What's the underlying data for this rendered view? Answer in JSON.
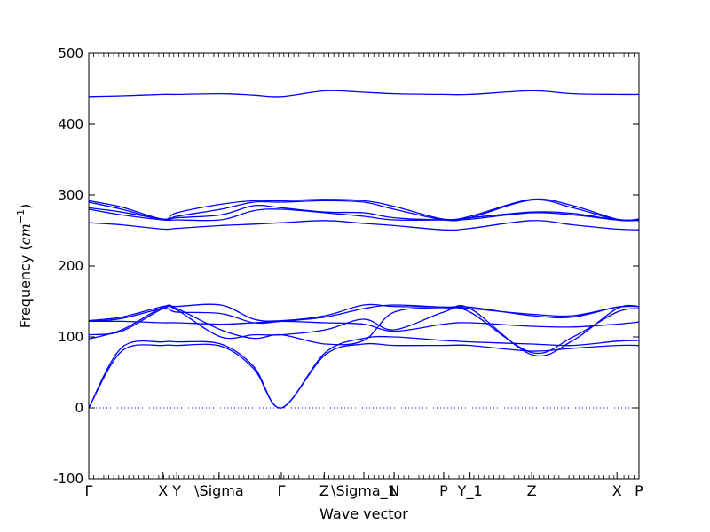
{
  "chart_data": {
    "type": "line",
    "xlabel": "Wave vector",
    "ylabel_main": "Frequency (",
    "ylabel_unit": "cm",
    "ylabel_exp": "−1",
    "ylabel_close": ")",
    "ylim": [
      -100,
      500
    ],
    "xlim": [
      0,
      1
    ],
    "yticks": [
      -100,
      0,
      100,
      200,
      300,
      400,
      500
    ],
    "xticks": [
      {
        "label": "Γ",
        "x": 0.0
      },
      {
        "label": "X",
        "x": 0.135
      },
      {
        "label": "Y",
        "x": 0.16
      },
      {
        "label": "\\Sigma",
        "x": 0.237
      },
      {
        "label": "Γ",
        "x": 0.35
      },
      {
        "label": "Z",
        "x": 0.428
      },
      {
        "label": "\\Sigma_1",
        "x": 0.5
      },
      {
        "label": "N",
        "x": 0.555
      },
      {
        "label": "P",
        "x": 0.645
      },
      {
        "label": "Y_1",
        "x": 0.693
      },
      {
        "label": "Z",
        "x": 0.805
      },
      {
        "label": "X",
        "x": 0.96
      },
      {
        "label": "P",
        "x": 1.0
      }
    ],
    "reference_line": {
      "y": 0,
      "style": "dotted"
    },
    "line_color": "#0000ff",
    "series": [
      {
        "x": [
          0,
          0.06,
          0.135,
          0.16,
          0.24,
          0.3,
          0.35,
          0.43,
          0.5,
          0.555,
          0.645,
          0.693,
          0.805,
          0.88,
          0.96,
          1
        ],
        "y": [
          0,
          80,
          88,
          88,
          87,
          55,
          0,
          75,
          90,
          88,
          88,
          88,
          80,
          84,
          88,
          88
        ]
      },
      {
        "x": [
          0,
          0.06,
          0.135,
          0.16,
          0.24,
          0.3,
          0.35,
          0.43,
          0.5,
          0.555,
          0.645,
          0.693,
          0.805,
          0.88,
          0.96,
          1
        ],
        "y": [
          0,
          85,
          93,
          93,
          90,
          58,
          0,
          78,
          98,
          100,
          95,
          93,
          90,
          88,
          94,
          95
        ]
      },
      {
        "x": [
          0,
          0.06,
          0.135,
          0.16,
          0.24,
          0.3,
          0.35,
          0.43,
          0.5,
          0.555,
          0.645,
          0.693,
          0.805,
          0.88,
          0.96,
          1
        ],
        "y": [
          97,
          110,
          142,
          140,
          110,
          98,
          103,
          90,
          95,
          135,
          140,
          135,
          78,
          100,
          135,
          140
        ]
      },
      {
        "x": [
          0,
          0.06,
          0.135,
          0.16,
          0.24,
          0.3,
          0.35,
          0.43,
          0.5,
          0.555,
          0.645,
          0.693,
          0.805,
          0.88,
          0.96,
          1
        ],
        "y": [
          103,
          108,
          140,
          138,
          100,
          103,
          103,
          110,
          125,
          110,
          135,
          140,
          75,
          95,
          140,
          143
        ]
      },
      {
        "x": [
          0,
          0.06,
          0.135,
          0.16,
          0.24,
          0.3,
          0.35,
          0.43,
          0.5,
          0.555,
          0.645,
          0.693,
          0.805,
          0.88,
          0.96,
          1
        ],
        "y": [
          122,
          126,
          140,
          135,
          133,
          120,
          122,
          128,
          140,
          145,
          142,
          142,
          130,
          128,
          142,
          143
        ]
      },
      {
        "x": [
          0,
          0.06,
          0.135,
          0.16,
          0.24,
          0.3,
          0.35,
          0.43,
          0.5,
          0.555,
          0.645,
          0.693,
          0.805,
          0.88,
          0.96,
          1
        ],
        "y": [
          123,
          128,
          143,
          143,
          145,
          125,
          123,
          130,
          145,
          143,
          142,
          140,
          132,
          130,
          142,
          143
        ]
      },
      {
        "x": [
          0,
          0.06,
          0.135,
          0.16,
          0.24,
          0.3,
          0.35,
          0.43,
          0.5,
          0.555,
          0.645,
          0.693,
          0.805,
          0.88,
          0.96,
          1
        ],
        "y": [
          122,
          122,
          120,
          120,
          118,
          120,
          122,
          120,
          118,
          108,
          118,
          120,
          115,
          114,
          118,
          121
        ]
      },
      {
        "x": [
          0,
          0.06,
          0.135,
          0.16,
          0.24,
          0.3,
          0.35,
          0.43,
          0.5,
          0.555,
          0.645,
          0.693,
          0.805,
          0.88,
          0.96,
          1
        ],
        "y": [
          261,
          258,
          252,
          253,
          257,
          259,
          261,
          264,
          260,
          257,
          251,
          253,
          264,
          258,
          252,
          251
        ]
      },
      {
        "x": [
          0,
          0.06,
          0.135,
          0.16,
          0.24,
          0.3,
          0.35,
          0.43,
          0.5,
          0.555,
          0.645,
          0.693,
          0.805,
          0.88,
          0.96,
          1
        ],
        "y": [
          280,
          272,
          265,
          265,
          265,
          278,
          280,
          275,
          270,
          265,
          265,
          266,
          275,
          272,
          265,
          264
        ]
      },
      {
        "x": [
          0,
          0.06,
          0.135,
          0.16,
          0.24,
          0.3,
          0.35,
          0.43,
          0.5,
          0.555,
          0.645,
          0.693,
          0.805,
          0.88,
          0.96,
          1
        ],
        "y": [
          282,
          276,
          266,
          268,
          272,
          285,
          282,
          276,
          275,
          268,
          265,
          268,
          276,
          274,
          265,
          265
        ]
      },
      {
        "x": [
          0,
          0.06,
          0.135,
          0.16,
          0.24,
          0.3,
          0.35,
          0.43,
          0.5,
          0.555,
          0.645,
          0.693,
          0.805,
          0.88,
          0.96,
          1
        ],
        "y": [
          290,
          280,
          265,
          270,
          280,
          290,
          290,
          292,
          290,
          280,
          265,
          268,
          293,
          282,
          265,
          265
        ]
      },
      {
        "x": [
          0,
          0.06,
          0.135,
          0.16,
          0.24,
          0.3,
          0.35,
          0.43,
          0.5,
          0.555,
          0.645,
          0.693,
          0.805,
          0.88,
          0.96,
          1
        ],
        "y": [
          292,
          283,
          266,
          275,
          287,
          292,
          292,
          294,
          292,
          284,
          266,
          270,
          294,
          285,
          266,
          266
        ]
      },
      {
        "x": [
          0,
          0.06,
          0.135,
          0.16,
          0.24,
          0.3,
          0.35,
          0.43,
          0.5,
          0.555,
          0.645,
          0.693,
          0.805,
          0.88,
          0.96,
          1
        ],
        "y": [
          439,
          440,
          442,
          442,
          443,
          441,
          439,
          447,
          445,
          443,
          442,
          442,
          447,
          443,
          442,
          442
        ]
      }
    ]
  }
}
